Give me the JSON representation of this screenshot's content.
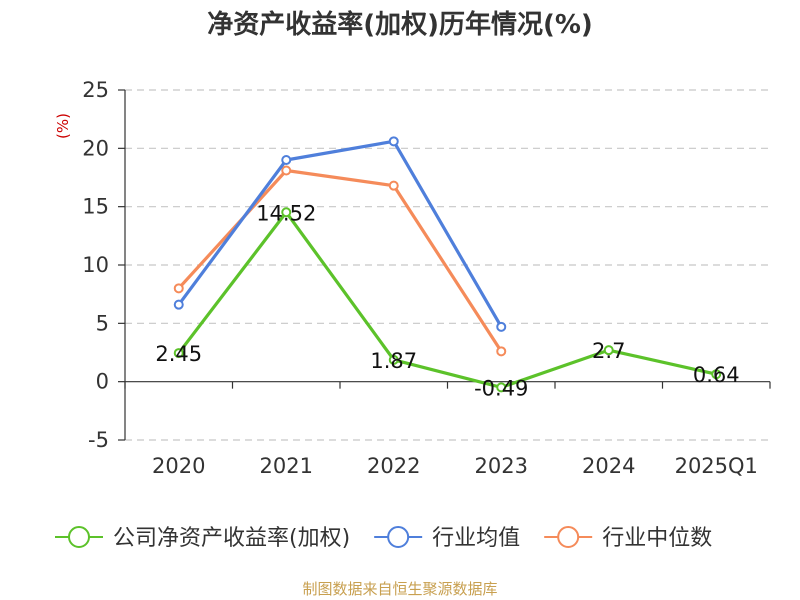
{
  "chart_data": {
    "type": "line",
    "title": "净资产收益率(加权)历年情况(%)",
    "ylabel": "(%)",
    "xlabel": "",
    "categories": [
      "2020",
      "2021",
      "2022",
      "2023",
      "2024",
      "2025Q1"
    ],
    "ylim": [
      -5,
      25
    ],
    "yticks": [
      25,
      20,
      15,
      10,
      5,
      0,
      -5
    ],
    "grid": true,
    "legend_position": "bottom",
    "series": [
      {
        "name": "公司净资产收益率(加权)",
        "color": "#5cc22a",
        "values": [
          2.45,
          14.52,
          1.87,
          -0.49,
          2.7,
          0.64
        ],
        "labels": [
          "2.45",
          "14.52",
          "1.87",
          "-0.49",
          "2.7",
          "0.64"
        ]
      },
      {
        "name": "行业均值",
        "color": "#4f7fdb",
        "values": [
          6.6,
          19.0,
          20.6,
          4.7,
          null,
          null
        ]
      },
      {
        "name": "行业中位数",
        "color": "#f58b5a",
        "values": [
          8.0,
          18.1,
          16.8,
          2.6,
          null,
          null
        ]
      }
    ],
    "source": "制图数据来自恒生聚源数据库"
  }
}
